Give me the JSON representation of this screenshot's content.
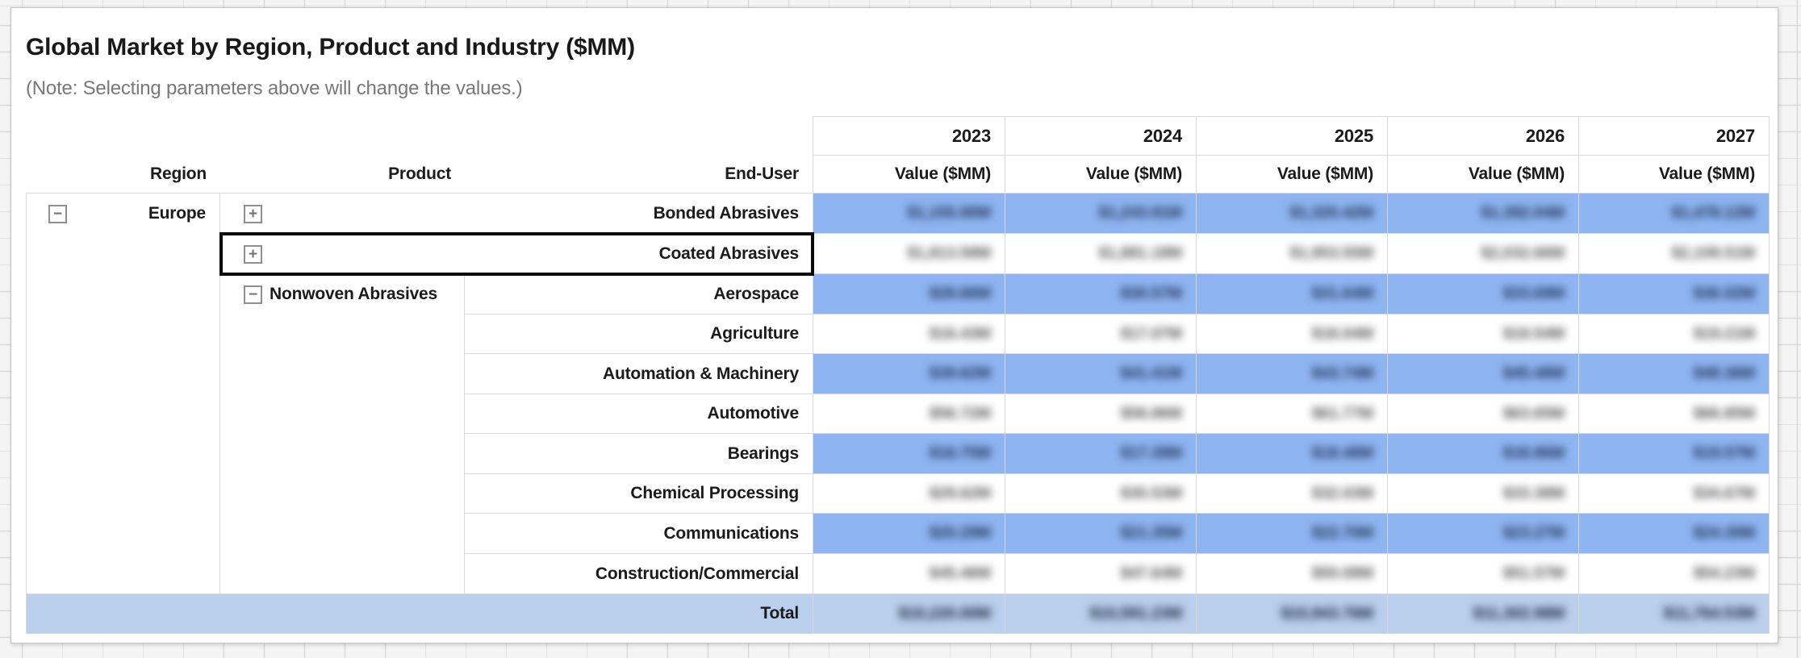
{
  "header": {
    "title": "Global Market by Region, Product and Industry ($MM)",
    "note": "(Note: Selecting parameters above will change the values.)"
  },
  "table": {
    "column_headers": {
      "region": "Region",
      "product": "Product",
      "end_user": "End-User"
    },
    "years": [
      "2023",
      "2024",
      "2025",
      "2026",
      "2027"
    ],
    "measure_header": "Value ($MM)",
    "toggle_icons": {
      "collapse": "−",
      "expand": "+"
    },
    "region": {
      "label": "Europe",
      "state": "expanded"
    },
    "products": {
      "bonded": {
        "label": "Bonded Abrasives",
        "state": "collapsed"
      },
      "coated": {
        "label": "Coated Abrasives",
        "state": "collapsed",
        "selected": true
      },
      "nonwoven": {
        "label": "Nonwoven Abrasives",
        "state": "expanded"
      }
    },
    "end_users": {
      "aerospace": "Aerospace",
      "agriculture": "Agriculture",
      "automation_machinery": "Automation & Machinery",
      "automotive": "Automotive",
      "bearings": "Bearings",
      "chemical_processing": "Chemical Processing",
      "communications": "Communications",
      "construction_commercial": "Construction/Commercial"
    },
    "total_label": "Total",
    "values_blurred_in_screenshot": true,
    "values": {
      "bonded": [
        "$1,155.90M",
        "$1,243.91M",
        "$1,320.42M",
        "$1,392.04M",
        "$1,478.12M"
      ],
      "coated": [
        "$1,813.58M",
        "$1,881.18M",
        "$1,953.55M",
        "$2,032.66M",
        "$2,109.51M"
      ],
      "aerospace": [
        "$28.66M",
        "$30.57M",
        "$31.64M",
        "$33.69M",
        "$36.02M"
      ],
      "agriculture": [
        "$16.43M",
        "$17.07M",
        "$18.04M",
        "$18.54M",
        "$19.21M"
      ],
      "automation_machinery": [
        "$39.62M",
        "$41.41M",
        "$43.74M",
        "$45.48M",
        "$48.36M"
      ],
      "automotive": [
        "$56.72M",
        "$58.86M",
        "$61.77M",
        "$63.65M",
        "$66.85M"
      ],
      "bearings": [
        "$16.75M",
        "$17.39M",
        "$18.48M",
        "$18.86M",
        "$19.57M"
      ],
      "chemical_processing": [
        "$29.62M",
        "$30.53M",
        "$32.03M",
        "$33.38M",
        "$34.67M"
      ],
      "communications": [
        "$20.29M",
        "$21.35M",
        "$22.70M",
        "$23.27M",
        "$24.30M"
      ],
      "construction_commercial": [
        "$45.46M",
        "$47.64M",
        "$50.08M",
        "$51.57M",
        "$54.23M"
      ],
      "total": [
        "$10,220.00M",
        "$10,591.23M",
        "$10,943.76M",
        "$11,302.98M",
        "$11,764.53M"
      ]
    },
    "colors": {
      "row_highlight": "#8eb4f2",
      "total_row": "#b9cfec",
      "grid_line": "#d9d9d9",
      "selection_border": "#0a0a0a"
    }
  }
}
